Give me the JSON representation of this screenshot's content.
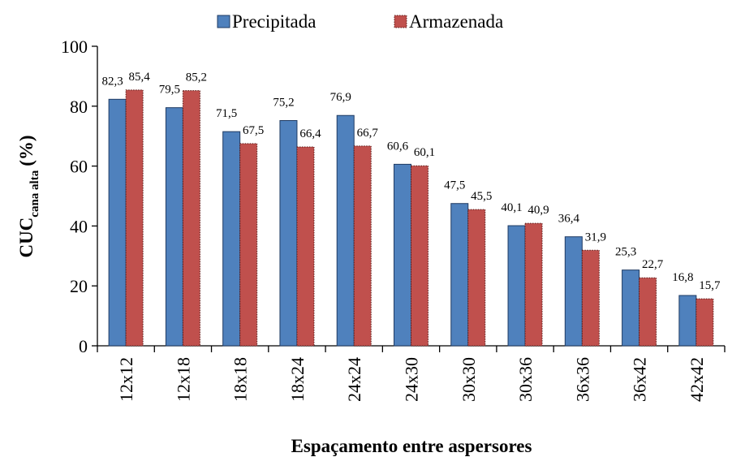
{
  "chart_data": {
    "type": "bar",
    "xlabel": "Espaçamento entre aspersores",
    "ylabel": "CUC",
    "ylabel_sub": "cana alta",
    "ylabel_unit": "(%)",
    "categories": [
      "12x12",
      "12x18",
      "18x18",
      "18x24",
      "24x24",
      "24x30",
      "30x30",
      "30x36",
      "36x36",
      "36x42",
      "42x42"
    ],
    "series": [
      {
        "name": "Precipitada",
        "color": "#4f81bd",
        "values": [
          82.3,
          79.5,
          71.5,
          75.2,
          76.9,
          60.6,
          47.5,
          40.1,
          36.4,
          25.3,
          16.8
        ],
        "value_labels": [
          "82,3",
          "79,5",
          "71,5",
          "75,2",
          "76,9",
          "60,6",
          "47,5",
          "40,1",
          "36,4",
          "25,3",
          "16,8"
        ]
      },
      {
        "name": "Armazenada",
        "color": "#c0504d",
        "values": [
          85.4,
          85.2,
          67.5,
          66.4,
          66.7,
          60.1,
          45.5,
          40.9,
          31.9,
          22.7,
          15.7
        ],
        "value_labels": [
          "85,4",
          "85,2",
          "67,5",
          "66,4",
          "66,7",
          "60,1",
          "45,5",
          "40,9",
          "31,9",
          "22,7",
          "15,7"
        ]
      }
    ],
    "ylim": [
      0,
      100
    ],
    "yticks": [
      0,
      20,
      40,
      60,
      80,
      100
    ],
    "legend": "top"
  }
}
